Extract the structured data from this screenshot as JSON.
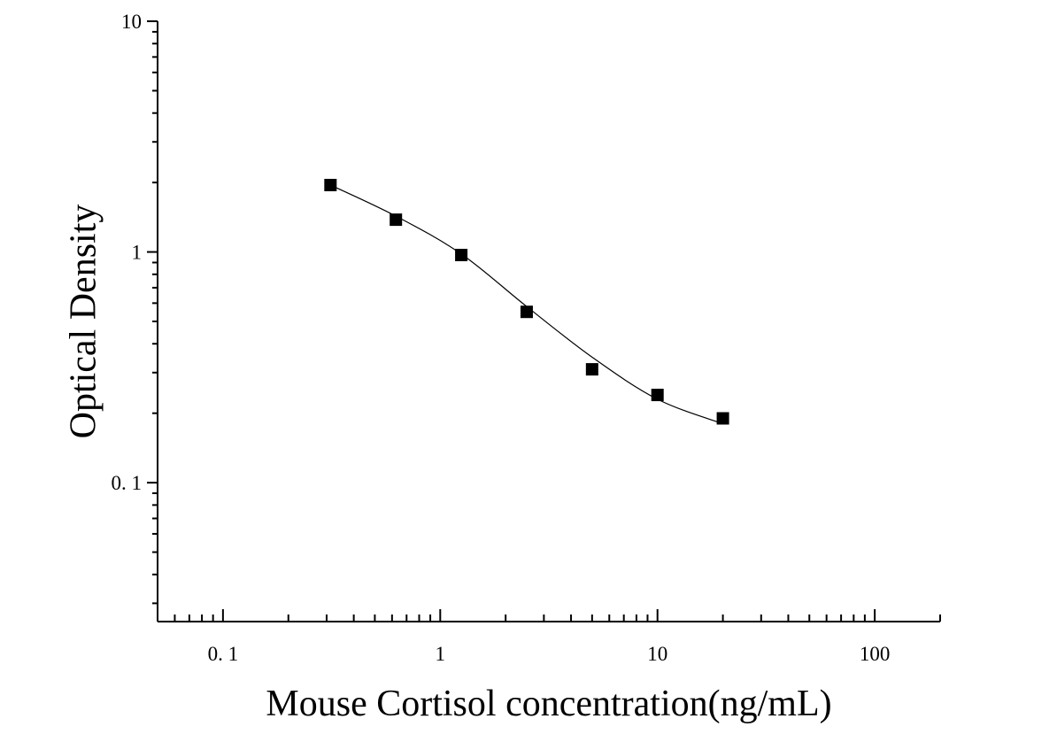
{
  "chart_data": {
    "type": "scatter",
    "title": "",
    "xlabel": "Mouse Cortisol concentration(ng/mL)",
    "ylabel": "Optical Density",
    "xscale": "log",
    "yscale": "log",
    "xlim": [
      0.05,
      200
    ],
    "ylim": [
      0.025,
      10
    ],
    "x_ticks": [
      {
        "value": 0.1,
        "label": "0. 1"
      },
      {
        "value": 1,
        "label": "1"
      },
      {
        "value": 10,
        "label": "10"
      },
      {
        "value": 100,
        "label": "100"
      }
    ],
    "y_ticks": [
      {
        "value": 10,
        "label": "10"
      },
      {
        "value": 1,
        "label": "1"
      },
      {
        "value": 0.1,
        "label": "0. 1"
      }
    ],
    "grid": false,
    "legend": false,
    "series": [
      {
        "marker": "square",
        "color": "#000000",
        "x": [
          0.3125,
          0.625,
          1.25,
          2.5,
          5,
          10,
          20
        ],
        "y": [
          1.95,
          1.38,
          0.97,
          0.55,
          0.31,
          0.24,
          0.19
        ],
        "fit_curve": {
          "x": [
            0.3125,
            0.625,
            1.25,
            2.5,
            5,
            10,
            20
          ],
          "y": [
            1.95,
            1.43,
            0.98,
            0.58,
            0.35,
            0.23,
            0.18
          ],
          "style": "smooth",
          "color": "#000000"
        }
      }
    ]
  }
}
